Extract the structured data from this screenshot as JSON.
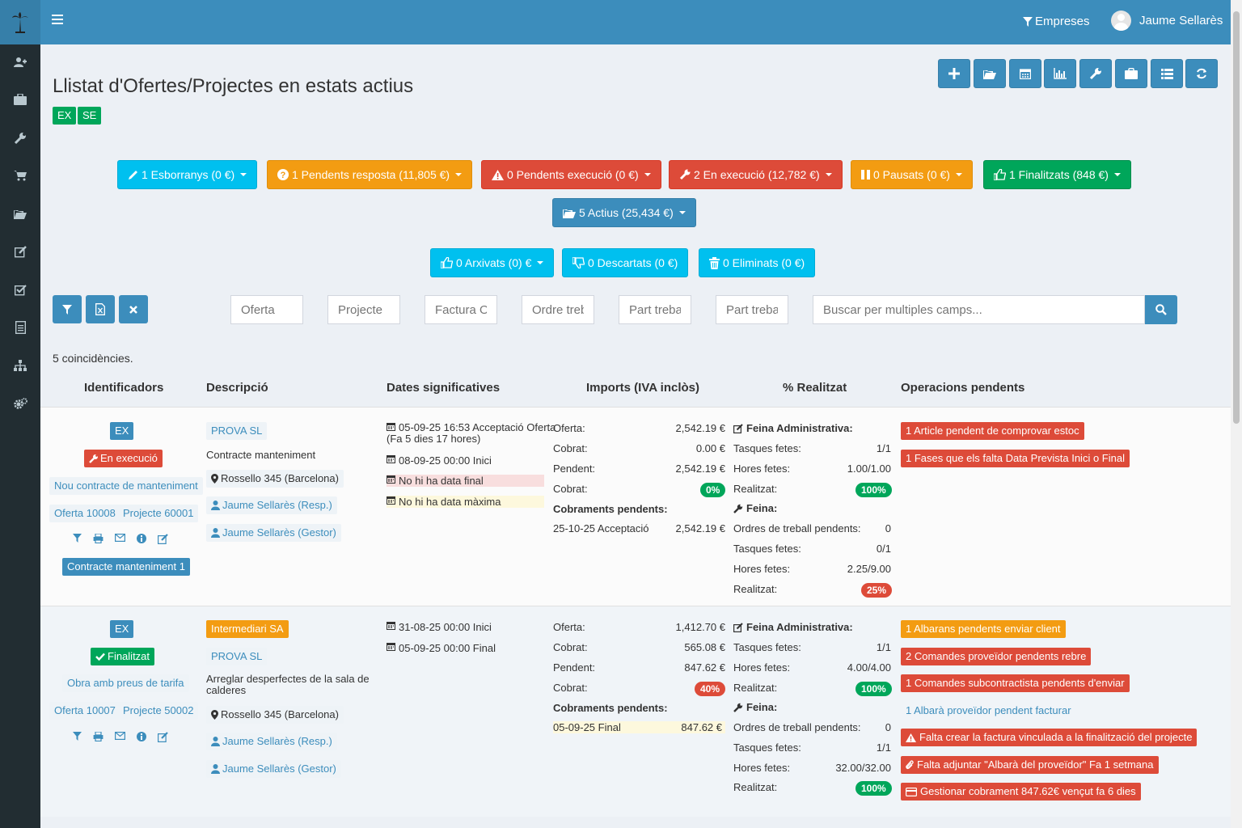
{
  "topbar": {
    "empreses": "Empreses",
    "user": "Jaume Sellarès"
  },
  "page": {
    "title": "Llistat d'Ofertes/Projectes en estats actius",
    "tags": [
      "EX",
      "SE"
    ]
  },
  "states": {
    "esborranys": "1 Esborranys (0 €)",
    "pendents_resposta": "1 Pendents resposta (11,805 €)",
    "pendents_execucio": "0 Pendents execució (0 €)",
    "en_execucio": "2 En execució (12,782 €)",
    "pausats": "0 Pausats (0 €)",
    "finalitzats": "1 Finalitzats (848 €)",
    "actius": "5 Actius (25,434 €)",
    "arxivats": "0 Arxivats (0) €",
    "descartats": "0 Descartats (0 €)",
    "eliminats": "0 Eliminats (0 €)"
  },
  "filters": {
    "oferta": "Oferta",
    "projecte": "Projecte",
    "factura": "Factura OI",
    "ordre": "Ordre treb",
    "part1": "Part trebal",
    "part2": "Part trebal",
    "search": "Buscar per multiples camps..."
  },
  "count": "5 coincidències.",
  "headers": {
    "ids": "Identificadors",
    "desc": "Descripció",
    "dates": "Dates significatives",
    "imports": "Imports (IVA inclòs)",
    "realitzat": "% Realitzat",
    "ops": "Operacions pendents"
  },
  "row1": {
    "type": "EX",
    "state": "En execució",
    "contract": "Nou contracte de manteniment",
    "oferta": "Oferta 10008",
    "projecte": "Projecte 60001",
    "contract_badge": "Contracte manteniment 1",
    "client": "PROVA SL",
    "desc": "Contracte manteniment",
    "address": "Rossello 345 (Barcelona)",
    "resp": "Jaume Sellarès (Resp.)",
    "gestor": "Jaume Sellarès (Gestor)",
    "date1a": "05-09-25 16:53 Acceptació Oferta",
    "date1b": "(Fa 5 dies 17 hores)",
    "date2": "08-09-25 00:00 Inici",
    "date3": "No hi ha data final",
    "date4": "No hi ha data màxima",
    "imp": {
      "oferta_l": "Oferta:",
      "oferta_v": "2,542.19 €",
      "cobrat_l": "Cobrat:",
      "cobrat_v": "0.00 €",
      "pendent_l": "Pendent:",
      "pendent_v": "2,542.19 €",
      "cobrat2_l": "Cobrat:",
      "pct": "0%",
      "cob_pend": "Cobraments pendents:",
      "cp_l": "25-10-25 Acceptació",
      "cp_v": "2,542.19 €"
    },
    "real": {
      "fa": "Feina Administrativa:",
      "t_l": "Tasques fetes:",
      "t_v": "1/1",
      "h_l": "Hores fetes:",
      "h_v": "1.00/1.00",
      "r_l": "Realitzat:",
      "r_v": "100%",
      "feina": "Feina:",
      "o_l": "Ordres de treball pendents:",
      "o_v": "0",
      "t2_l": "Tasques fetes:",
      "t2_v": "0/1",
      "h2_l": "Hores fetes:",
      "h2_v": "2.25/9.00",
      "r2_l": "Realitzat:",
      "r2_v": "25%"
    },
    "ops": [
      "1 Article pendent de comprovar estoc",
      "1 Fases que els falta Data Prevista Inici o Final"
    ]
  },
  "row2": {
    "type": "EX",
    "state": "Finalitzat",
    "contract": "Obra amb preus de tarifa",
    "oferta": "Oferta 10007",
    "projecte": "Projecte 50002",
    "client1": "Intermediari SA",
    "client2": "PROVA SL",
    "desc1": "Arreglar desperfectes de la sala de",
    "desc2": "calderes",
    "address": "Rossello 345 (Barcelona)",
    "resp": "Jaume Sellarès (Resp.)",
    "gestor": "Jaume Sellarès (Gestor)",
    "date1": "31-08-25 00:00 Inici",
    "date2": "05-09-25 00:00 Final",
    "imp": {
      "oferta_l": "Oferta:",
      "oferta_v": "1,412.70 €",
      "cobrat_l": "Cobrat:",
      "cobrat_v": "565.08 €",
      "pendent_l": "Pendent:",
      "pendent_v": "847.62 €",
      "cobrat2_l": "Cobrat:",
      "pct": "40%",
      "cob_pend": "Cobraments pendents:",
      "cp_l": "05-09-25 Final",
      "cp_v": "847.62 €"
    },
    "real": {
      "fa": "Feina Administrativa:",
      "t_l": "Tasques fetes:",
      "t_v": "1/1",
      "h_l": "Hores fetes:",
      "h_v": "4.00/4.00",
      "r_l": "Realitzat:",
      "r_v": "100%",
      "feina": "Feina:",
      "o_l": "Ordres de treball pendents:",
      "o_v": "0",
      "t2_l": "Tasques fetes:",
      "t2_v": "1/1",
      "h2_l": "Hores fetes:",
      "h2_v": "32.00/32.00",
      "r2_l": "Realitzat:",
      "r2_v": "100%"
    },
    "ops": [
      "1 Albarans pendents enviar client",
      "2 Comandes proveïdor pendents rebre",
      "1 Comandes subcontractista pendents d'enviar",
      "1 Albarà proveïdor pendent facturar",
      "Falta crear la factura vinculada a la finalització del projecte",
      "Falta adjuntar \"Albarà del proveïdor\" Fa 1 setmana",
      "Gestionar cobrament 847.62€ vençut fa 6 dies"
    ]
  },
  "colors": {
    "primary": "#3c8dbc",
    "aqua": "#00c0ef",
    "orange": "#f39c12",
    "red": "#dd4b39",
    "green": "#00a65a",
    "sidebar": "#222d32"
  }
}
